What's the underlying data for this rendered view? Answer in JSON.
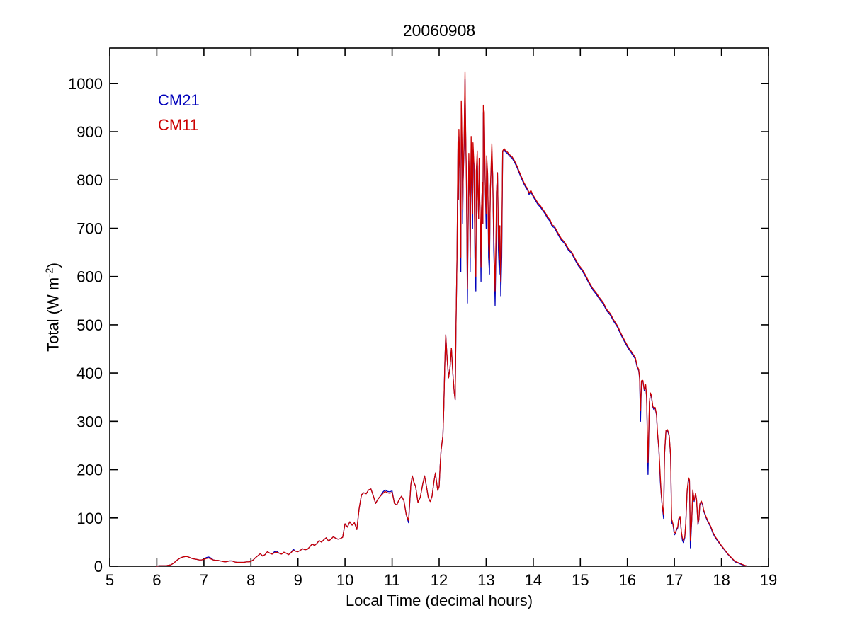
{
  "figure": {
    "background": "#ffffff",
    "axes_color": "#000000"
  },
  "chart_data": {
    "type": "line",
    "title": "20060908",
    "xlabel": "Local Time (decimal hours)",
    "ylabel": {
      "main": "Total (W m",
      "sup": "-2",
      "close": ")"
    },
    "xlim": [
      5,
      19
    ],
    "ylim": [
      0,
      1073
    ],
    "xticks": [
      5,
      6,
      7,
      8,
      9,
      10,
      11,
      12,
      13,
      14,
      15,
      16,
      17,
      18,
      19
    ],
    "yticks": [
      0,
      100,
      200,
      300,
      400,
      500,
      600,
      700,
      800,
      900,
      1000
    ],
    "grid": false,
    "box": true,
    "tick_direction": "in",
    "legend_position": "upper-left-inside-text-only",
    "legend": [
      {
        "label": "CM21",
        "color": "#0000BB"
      },
      {
        "label": "CM11",
        "color": "#CC0000"
      }
    ],
    "series": [
      {
        "name": "CM21",
        "color": "#0000BB"
      },
      {
        "name": "CM11",
        "color": "#CC0000"
      }
    ],
    "points_format": [
      "time_decimal_hours",
      "CM21_W_m2",
      "CM11_W_m2"
    ],
    "points": [
      [
        5.98,
        0,
        0
      ],
      [
        6,
        0,
        0
      ],
      [
        6.05,
        1,
        1
      ],
      [
        6.1,
        1,
        1
      ],
      [
        6.15,
        1,
        1
      ],
      [
        6.2,
        1,
        1
      ],
      [
        6.25,
        2,
        2
      ],
      [
        6.3,
        3,
        3
      ],
      [
        6.35,
        6,
        6
      ],
      [
        6.4,
        10,
        10
      ],
      [
        6.45,
        14,
        14
      ],
      [
        6.5,
        17,
        17
      ],
      [
        6.55,
        19,
        19
      ],
      [
        6.6,
        20,
        20
      ],
      [
        6.65,
        20,
        20
      ],
      [
        6.7,
        18,
        18
      ],
      [
        6.75,
        16,
        16
      ],
      [
        6.8,
        15,
        15
      ],
      [
        6.85,
        14,
        14
      ],
      [
        6.9,
        13,
        13
      ],
      [
        6.95,
        13,
        13
      ],
      [
        7,
        14,
        14
      ],
      [
        7.05,
        18,
        16
      ],
      [
        7.1,
        19,
        17
      ],
      [
        7.15,
        17,
        15
      ],
      [
        7.2,
        13,
        13
      ],
      [
        7.25,
        12,
        12
      ],
      [
        7.3,
        12,
        12
      ],
      [
        7.35,
        11,
        11
      ],
      [
        7.4,
        10,
        10
      ],
      [
        7.45,
        9,
        9
      ],
      [
        7.5,
        10,
        10
      ],
      [
        7.55,
        11,
        11
      ],
      [
        7.6,
        11,
        11
      ],
      [
        7.65,
        9,
        9
      ],
      [
        7.7,
        8,
        8
      ],
      [
        7.75,
        8,
        8
      ],
      [
        7.8,
        8,
        8
      ],
      [
        7.85,
        8,
        8
      ],
      [
        7.9,
        9,
        9
      ],
      [
        7.95,
        9,
        9
      ],
      [
        8,
        10,
        10
      ],
      [
        8.05,
        13,
        13
      ],
      [
        8.1,
        18,
        18
      ],
      [
        8.15,
        22,
        22
      ],
      [
        8.2,
        26,
        26
      ],
      [
        8.25,
        21,
        21
      ],
      [
        8.3,
        24,
        24
      ],
      [
        8.35,
        30,
        30
      ],
      [
        8.4,
        27,
        27
      ],
      [
        8.45,
        25,
        25
      ],
      [
        8.5,
        30,
        28
      ],
      [
        8.55,
        31,
        29
      ],
      [
        8.6,
        27,
        27
      ],
      [
        8.65,
        25,
        25
      ],
      [
        8.7,
        29,
        29
      ],
      [
        8.75,
        27,
        27
      ],
      [
        8.8,
        24,
        24
      ],
      [
        8.85,
        28,
        28
      ],
      [
        8.9,
        35,
        33
      ],
      [
        8.95,
        31,
        31
      ],
      [
        9,
        30,
        30
      ],
      [
        9.05,
        33,
        33
      ],
      [
        9.1,
        36,
        36
      ],
      [
        9.15,
        34,
        34
      ],
      [
        9.2,
        35,
        35
      ],
      [
        9.25,
        40,
        40
      ],
      [
        9.3,
        46,
        46
      ],
      [
        9.35,
        43,
        43
      ],
      [
        9.4,
        47,
        47
      ],
      [
        9.45,
        53,
        53
      ],
      [
        9.5,
        50,
        50
      ],
      [
        9.55,
        55,
        55
      ],
      [
        9.6,
        59,
        59
      ],
      [
        9.65,
        52,
        52
      ],
      [
        9.7,
        56,
        56
      ],
      [
        9.75,
        61,
        61
      ],
      [
        9.8,
        58,
        58
      ],
      [
        9.85,
        56,
        56
      ],
      [
        9.9,
        57,
        57
      ],
      [
        9.95,
        60,
        60
      ],
      [
        10,
        88,
        88
      ],
      [
        10.05,
        81,
        81
      ],
      [
        10.1,
        92,
        92
      ],
      [
        10.15,
        85,
        85
      ],
      [
        10.2,
        90,
        90
      ],
      [
        10.25,
        76,
        76
      ],
      [
        10.3,
        120,
        120
      ],
      [
        10.35,
        148,
        148
      ],
      [
        10.4,
        152,
        152
      ],
      [
        10.45,
        150,
        150
      ],
      [
        10.5,
        158,
        158
      ],
      [
        10.55,
        160,
        160
      ],
      [
        10.6,
        146,
        146
      ],
      [
        10.65,
        130,
        130
      ],
      [
        10.7,
        139,
        139
      ],
      [
        10.75,
        145,
        145
      ],
      [
        10.8,
        153,
        150
      ],
      [
        10.85,
        158,
        155
      ],
      [
        10.9,
        155,
        152
      ],
      [
        10.95,
        154,
        151
      ],
      [
        11,
        156,
        153
      ],
      [
        11.05,
        130,
        130
      ],
      [
        11.1,
        127,
        127
      ],
      [
        11.15,
        138,
        138
      ],
      [
        11.2,
        145,
        145
      ],
      [
        11.25,
        136,
        136
      ],
      [
        11.3,
        107,
        107
      ],
      [
        11.35,
        90,
        95
      ],
      [
        11.4,
        170,
        170
      ],
      [
        11.43,
        187,
        187
      ],
      [
        11.46,
        175,
        175
      ],
      [
        11.5,
        165,
        165
      ],
      [
        11.55,
        132,
        132
      ],
      [
        11.6,
        143,
        143
      ],
      [
        11.65,
        170,
        170
      ],
      [
        11.69,
        187,
        187
      ],
      [
        11.73,
        165,
        165
      ],
      [
        11.77,
        142,
        142
      ],
      [
        11.81,
        134,
        134
      ],
      [
        11.85,
        145,
        145
      ],
      [
        11.89,
        176,
        176
      ],
      [
        11.92,
        193,
        193
      ],
      [
        11.95,
        171,
        171
      ],
      [
        11.97,
        157,
        157
      ],
      [
        12,
        165,
        165
      ],
      [
        12.02,
        205,
        205
      ],
      [
        12.04,
        240,
        240
      ],
      [
        12.06,
        255,
        255
      ],
      [
        12.08,
        270,
        270
      ],
      [
        12.1,
        330,
        330
      ],
      [
        12.12,
        420,
        420
      ],
      [
        12.14,
        479,
        479
      ],
      [
        12.17,
        430,
        430
      ],
      [
        12.2,
        390,
        390
      ],
      [
        12.23,
        410,
        410
      ],
      [
        12.26,
        452,
        452
      ],
      [
        12.29,
        400,
        400
      ],
      [
        12.32,
        360,
        360
      ],
      [
        12.34,
        345,
        345
      ],
      [
        12.36,
        508,
        508
      ],
      [
        12.38,
        640,
        640
      ],
      [
        12.4,
        865,
        880
      ],
      [
        12.41,
        760,
        760
      ],
      [
        12.42,
        890,
        905
      ],
      [
        12.44,
        820,
        820
      ],
      [
        12.45,
        670,
        700
      ],
      [
        12.46,
        610,
        640
      ],
      [
        12.47,
        949,
        964
      ],
      [
        12.49,
        845,
        860
      ],
      [
        12.5,
        710,
        740
      ],
      [
        12.51,
        800,
        800
      ],
      [
        12.53,
        865,
        880
      ],
      [
        12.55,
        1008,
        1023
      ],
      [
        12.56,
        915,
        930
      ],
      [
        12.58,
        800,
        800
      ],
      [
        12.59,
        670,
        700
      ],
      [
        12.6,
        545,
        575
      ],
      [
        12.62,
        740,
        740
      ],
      [
        12.63,
        840,
        855
      ],
      [
        12.65,
        760,
        760
      ],
      [
        12.66,
        610,
        640
      ],
      [
        12.68,
        875,
        890
      ],
      [
        12.69,
        820,
        820
      ],
      [
        12.71,
        700,
        730
      ],
      [
        12.72,
        862,
        877
      ],
      [
        12.74,
        830,
        830
      ],
      [
        12.75,
        750,
        750
      ],
      [
        12.76,
        640,
        670
      ],
      [
        12.78,
        570,
        600
      ],
      [
        12.79,
        820,
        820
      ],
      [
        12.81,
        845,
        860
      ],
      [
        12.82,
        790,
        790
      ],
      [
        12.84,
        720,
        720
      ],
      [
        12.85,
        830,
        845
      ],
      [
        12.86,
        775,
        775
      ],
      [
        12.88,
        670,
        700
      ],
      [
        12.89,
        590,
        620
      ],
      [
        12.9,
        735,
        735
      ],
      [
        12.92,
        795,
        795
      ],
      [
        12.93,
        710,
        710
      ],
      [
        12.94,
        940,
        955
      ],
      [
        12.96,
        925,
        940
      ],
      [
        12.97,
        845,
        860
      ],
      [
        12.98,
        790,
        790
      ],
      [
        13,
        700,
        730
      ],
      [
        13.01,
        835,
        850
      ],
      [
        13.03,
        815,
        815
      ],
      [
        13.04,
        745,
        745
      ],
      [
        13.05,
        640,
        670
      ],
      [
        13.07,
        605,
        635
      ],
      [
        13.08,
        715,
        715
      ],
      [
        13.09,
        785,
        785
      ],
      [
        13.11,
        830,
        845
      ],
      [
        13.12,
        860,
        875
      ],
      [
        13.14,
        805,
        805
      ],
      [
        13.15,
        735,
        735
      ],
      [
        13.16,
        655,
        685
      ],
      [
        13.18,
        585,
        615
      ],
      [
        13.19,
        540,
        570
      ],
      [
        13.21,
        665,
        695
      ],
      [
        13.22,
        775,
        775
      ],
      [
        13.24,
        815,
        815
      ],
      [
        13.25,
        755,
        755
      ],
      [
        13.26,
        655,
        685
      ],
      [
        13.28,
        605,
        635
      ],
      [
        13.29,
        705,
        705
      ],
      [
        13.31,
        560,
        590
      ],
      [
        13.33,
        640,
        670
      ],
      [
        13.35,
        858,
        860
      ],
      [
        13.38,
        862,
        865
      ],
      [
        13.4,
        859,
        862
      ],
      [
        13.45,
        855,
        858
      ],
      [
        13.5,
        849,
        852
      ],
      [
        13.55,
        845,
        848
      ],
      [
        13.6,
        837,
        840
      ],
      [
        13.65,
        827,
        830
      ],
      [
        13.7,
        815,
        818
      ],
      [
        13.75,
        803,
        806
      ],
      [
        13.8,
        792,
        795
      ],
      [
        13.85,
        783,
        786
      ],
      [
        13.88,
        779,
        782
      ],
      [
        13.91,
        770,
        773
      ],
      [
        13.95,
        775,
        778
      ],
      [
        14,
        765,
        768
      ],
      [
        14.05,
        757,
        760
      ],
      [
        14.1,
        749,
        752
      ],
      [
        14.15,
        744,
        747
      ],
      [
        14.2,
        737,
        740
      ],
      [
        14.25,
        730,
        733
      ],
      [
        14.3,
        721,
        724
      ],
      [
        14.36,
        714,
        717
      ],
      [
        14.4,
        704,
        707
      ],
      [
        14.45,
        701,
        704
      ],
      [
        14.51,
        690,
        693
      ],
      [
        14.55,
        683,
        686
      ],
      [
        14.6,
        675,
        678
      ],
      [
        14.66,
        669,
        672
      ],
      [
        14.71,
        661,
        664
      ],
      [
        14.75,
        654,
        657
      ],
      [
        14.81,
        649,
        652
      ],
      [
        14.89,
        634,
        637
      ],
      [
        14.96,
        622,
        625
      ],
      [
        15.04,
        612,
        615
      ],
      [
        15.11,
        600,
        603
      ],
      [
        15.19,
        585,
        588
      ],
      [
        15.26,
        573,
        576
      ],
      [
        15.34,
        563,
        566
      ],
      [
        15.41,
        553,
        556
      ],
      [
        15.49,
        543,
        546
      ],
      [
        15.56,
        529,
        532
      ],
      [
        15.64,
        520,
        523
      ],
      [
        15.71,
        507,
        510
      ],
      [
        15.79,
        495,
        498
      ],
      [
        15.86,
        480,
        483
      ],
      [
        15.94,
        465,
        468
      ],
      [
        16.02,
        451,
        454
      ],
      [
        16.09,
        441,
        444
      ],
      [
        16.17,
        429,
        432
      ],
      [
        16.21,
        411,
        414
      ],
      [
        16.24,
        405,
        408
      ],
      [
        16.26,
        389,
        391
      ],
      [
        16.28,
        300,
        322
      ],
      [
        16.3,
        382,
        384
      ],
      [
        16.33,
        383,
        385
      ],
      [
        16.36,
        364,
        366
      ],
      [
        16.39,
        374,
        376
      ],
      [
        16.41,
        349,
        351
      ],
      [
        16.44,
        190,
        215
      ],
      [
        16.47,
        339,
        341
      ],
      [
        16.49,
        357,
        359
      ],
      [
        16.51,
        352,
        354
      ],
      [
        16.54,
        330,
        332
      ],
      [
        16.56,
        325,
        327
      ],
      [
        16.59,
        327,
        329
      ],
      [
        16.62,
        313,
        315
      ],
      [
        16.64,
        276,
        278
      ],
      [
        16.67,
        242,
        244
      ],
      [
        16.7,
        176,
        186
      ],
      [
        16.72,
        149,
        151
      ],
      [
        16.74,
        125,
        127
      ],
      [
        16.77,
        99,
        107
      ],
      [
        16.79,
        232,
        234
      ],
      [
        16.82,
        279,
        281
      ],
      [
        16.85,
        281,
        283
      ],
      [
        16.87,
        276,
        278
      ],
      [
        16.89,
        269,
        271
      ],
      [
        16.92,
        228,
        230
      ],
      [
        16.94,
        90,
        98
      ],
      [
        16.97,
        86,
        88
      ],
      [
        17,
        65,
        70
      ],
      [
        17.02,
        67,
        69
      ],
      [
        17.04,
        74,
        76
      ],
      [
        17.07,
        79,
        81
      ],
      [
        17.09,
        96,
        98
      ],
      [
        17.12,
        101,
        103
      ],
      [
        17.15,
        68,
        70
      ],
      [
        17.17,
        54,
        59
      ],
      [
        17.19,
        49,
        54
      ],
      [
        17.22,
        59,
        61
      ],
      [
        17.24,
        86,
        88
      ],
      [
        17.27,
        155,
        157
      ],
      [
        17.3,
        181,
        183
      ],
      [
        17.32,
        177,
        179
      ],
      [
        17.34,
        38,
        54
      ],
      [
        17.37,
        96,
        98
      ],
      [
        17.39,
        156,
        158
      ],
      [
        17.42,
        134,
        136
      ],
      [
        17.45,
        149,
        151
      ],
      [
        17.47,
        137,
        139
      ],
      [
        17.5,
        86,
        88
      ],
      [
        17.52,
        96,
        98
      ],
      [
        17.54,
        127,
        129
      ],
      [
        17.57,
        133,
        135
      ],
      [
        17.6,
        127,
        129
      ],
      [
        17.62,
        115,
        117
      ],
      [
        17.67,
        101,
        103
      ],
      [
        17.72,
        90,
        92
      ],
      [
        17.77,
        81,
        83
      ],
      [
        17.82,
        68,
        70
      ],
      [
        17.87,
        59,
        61
      ],
      [
        17.92,
        52,
        54
      ],
      [
        17.99,
        43,
        44
      ],
      [
        18.07,
        33,
        34
      ],
      [
        18.14,
        24,
        25
      ],
      [
        18.22,
        16,
        17
      ],
      [
        18.29,
        9,
        10
      ],
      [
        18.37,
        6,
        7
      ],
      [
        18.44,
        3,
        4
      ],
      [
        18.52,
        1,
        1
      ],
      [
        18.55,
        0,
        0
      ]
    ]
  }
}
